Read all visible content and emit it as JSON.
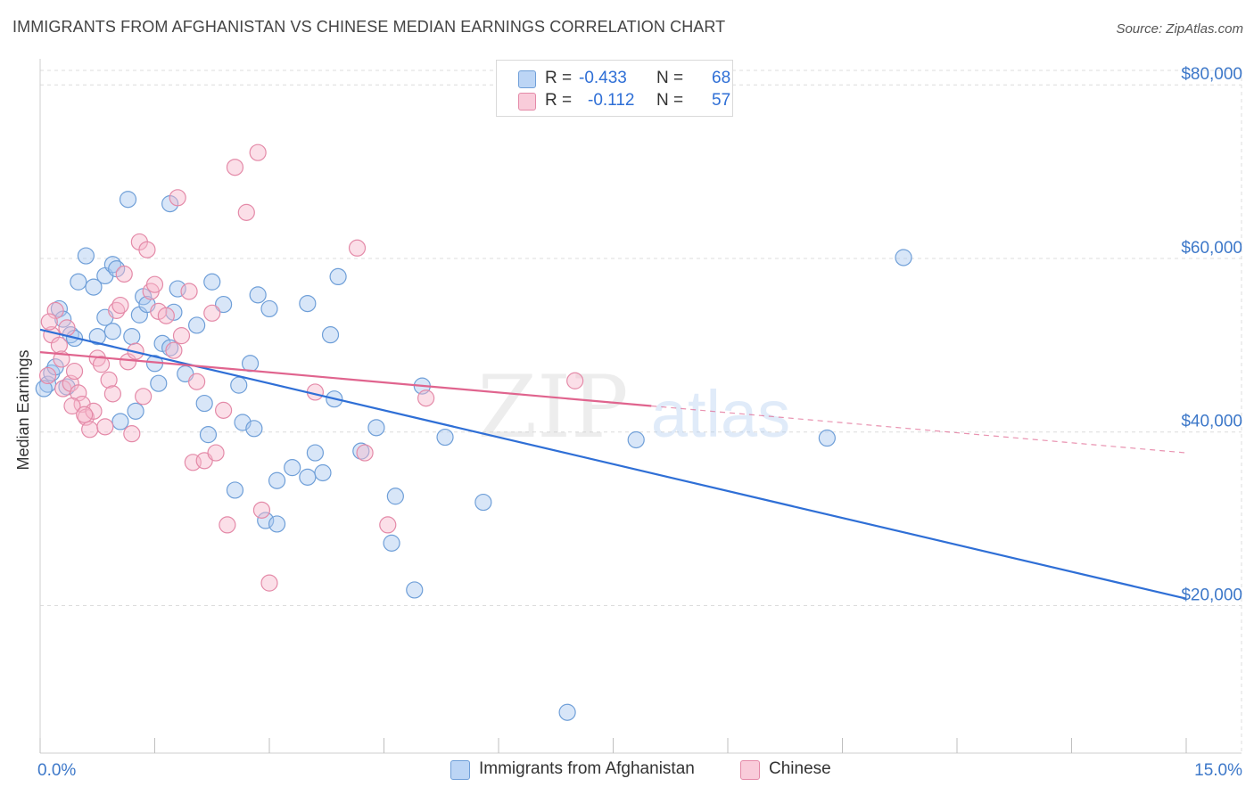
{
  "title": "IMMIGRANTS FROM AFGHANISTAN VS CHINESE MEDIAN EARNINGS CORRELATION CHART",
  "source": "Source: ZipAtlas.com",
  "watermark": {
    "zip": "ZIP",
    "atlas": "atlas"
  },
  "colors": {
    "blue_fill": "#a8c8f0",
    "blue_stroke": "#6f9fd8",
    "blue_line": "#2f6fd6",
    "pink_fill": "#f6b8cc",
    "pink_stroke": "#e48aa8",
    "pink_line": "#e0648e",
    "axis_text": "#3d78c9",
    "grid": "#dcdcdc"
  },
  "legend": {
    "r_label": "R =",
    "n_label": "N =",
    "series": [
      {
        "r": "-0.433",
        "n": "68"
      },
      {
        "r": "-0.112",
        "n": "57"
      }
    ]
  },
  "chart_data": {
    "type": "scatter",
    "xlabel": "",
    "ylabel": "Median Earnings",
    "xlim": [
      0,
      15
    ],
    "ylim": [
      3000,
      83000
    ],
    "x_tick_labels": [
      "0.0%",
      "15.0%"
    ],
    "y_ticks": [
      20000,
      40000,
      60000,
      80000
    ],
    "y_tick_labels": [
      "$20,000",
      "$40,000",
      "$60,000",
      "$80,000"
    ],
    "grid": true,
    "legend_position": "top-center",
    "series": [
      {
        "name": "Immigrants from Afghanistan",
        "color": "#a8c8f0",
        "trend": {
          "x": [
            0.0,
            15.0
          ],
          "y": [
            51800,
            20800
          ],
          "dashed_to": null
        },
        "points": [
          [
            0.1,
            45500
          ],
          [
            0.15,
            46800
          ],
          [
            0.2,
            47500
          ],
          [
            0.25,
            54200
          ],
          [
            0.3,
            53000
          ],
          [
            0.35,
            45200
          ],
          [
            0.4,
            51200
          ],
          [
            0.45,
            50800
          ],
          [
            0.5,
            57300
          ],
          [
            0.6,
            60300
          ],
          [
            0.7,
            56700
          ],
          [
            0.75,
            51000
          ],
          [
            0.85,
            53200
          ],
          [
            0.85,
            58000
          ],
          [
            0.95,
            51600
          ],
          [
            0.95,
            59300
          ],
          [
            1.0,
            58800
          ],
          [
            1.05,
            41200
          ],
          [
            1.15,
            66800
          ],
          [
            1.2,
            51000
          ],
          [
            1.25,
            42400
          ],
          [
            1.3,
            53500
          ],
          [
            1.35,
            55600
          ],
          [
            1.4,
            54700
          ],
          [
            1.5,
            47900
          ],
          [
            1.55,
            45600
          ],
          [
            1.6,
            50200
          ],
          [
            1.7,
            49700
          ],
          [
            1.7,
            66300
          ],
          [
            1.75,
            53800
          ],
          [
            1.8,
            56500
          ],
          [
            1.9,
            46700
          ],
          [
            2.05,
            52300
          ],
          [
            2.15,
            43300
          ],
          [
            2.2,
            39700
          ],
          [
            2.25,
            57300
          ],
          [
            2.4,
            54700
          ],
          [
            2.55,
            33300
          ],
          [
            2.6,
            45400
          ],
          [
            2.65,
            41100
          ],
          [
            2.75,
            47900
          ],
          [
            2.8,
            40400
          ],
          [
            2.85,
            55800
          ],
          [
            2.95,
            29800
          ],
          [
            3.0,
            54200
          ],
          [
            3.1,
            34400
          ],
          [
            3.1,
            29400
          ],
          [
            3.3,
            35900
          ],
          [
            3.5,
            34800
          ],
          [
            3.5,
            54800
          ],
          [
            3.6,
            37600
          ],
          [
            3.7,
            35300
          ],
          [
            3.8,
            51200
          ],
          [
            3.85,
            43800
          ],
          [
            3.9,
            57900
          ],
          [
            4.2,
            37800
          ],
          [
            4.4,
            40500
          ],
          [
            4.65,
            32600
          ],
          [
            4.6,
            27200
          ],
          [
            4.9,
            21800
          ],
          [
            5.0,
            45300
          ],
          [
            5.3,
            39400
          ],
          [
            5.8,
            31900
          ],
          [
            6.9,
            7700
          ],
          [
            7.8,
            39100
          ],
          [
            10.3,
            39300
          ],
          [
            11.3,
            60100
          ],
          [
            0.05,
            45000
          ]
        ]
      },
      {
        "name": "Chinese",
        "color": "#f6b8cc",
        "trend": {
          "x": [
            0.0,
            8.0
          ],
          "y": [
            49200,
            43000
          ],
          "dashed_to": [
            15.0,
            37600
          ]
        },
        "points": [
          [
            0.1,
            46500
          ],
          [
            0.15,
            51200
          ],
          [
            0.2,
            54000
          ],
          [
            0.25,
            50000
          ],
          [
            0.3,
            45000
          ],
          [
            0.35,
            52000
          ],
          [
            0.4,
            45600
          ],
          [
            0.45,
            47000
          ],
          [
            0.5,
            44500
          ],
          [
            0.55,
            43200
          ],
          [
            0.6,
            41700
          ],
          [
            0.65,
            40300
          ],
          [
            0.7,
            42400
          ],
          [
            0.75,
            48500
          ],
          [
            0.8,
            47800
          ],
          [
            0.85,
            40600
          ],
          [
            0.9,
            46000
          ],
          [
            0.95,
            44400
          ],
          [
            1.0,
            54000
          ],
          [
            1.05,
            54600
          ],
          [
            1.1,
            58200
          ],
          [
            1.15,
            48100
          ],
          [
            1.2,
            39800
          ],
          [
            1.25,
            49300
          ],
          [
            1.3,
            61900
          ],
          [
            1.35,
            44100
          ],
          [
            1.4,
            61000
          ],
          [
            1.45,
            56200
          ],
          [
            1.5,
            57000
          ],
          [
            1.55,
            53900
          ],
          [
            1.65,
            53400
          ],
          [
            1.75,
            49400
          ],
          [
            1.8,
            67000
          ],
          [
            1.85,
            51100
          ],
          [
            1.95,
            56200
          ],
          [
            2.0,
            36500
          ],
          [
            2.05,
            45800
          ],
          [
            2.15,
            36700
          ],
          [
            2.25,
            53700
          ],
          [
            2.3,
            37600
          ],
          [
            2.4,
            42500
          ],
          [
            2.45,
            29300
          ],
          [
            2.55,
            70500
          ],
          [
            2.7,
            65300
          ],
          [
            2.85,
            72200
          ],
          [
            2.9,
            31000
          ],
          [
            3.0,
            22600
          ],
          [
            3.6,
            44600
          ],
          [
            4.15,
            61200
          ],
          [
            4.25,
            37600
          ],
          [
            4.55,
            29300
          ],
          [
            5.05,
            43900
          ],
          [
            7.0,
            45900
          ],
          [
            0.12,
            52700
          ],
          [
            0.28,
            48400
          ],
          [
            0.42,
            43000
          ],
          [
            0.58,
            42000
          ]
        ]
      }
    ]
  }
}
